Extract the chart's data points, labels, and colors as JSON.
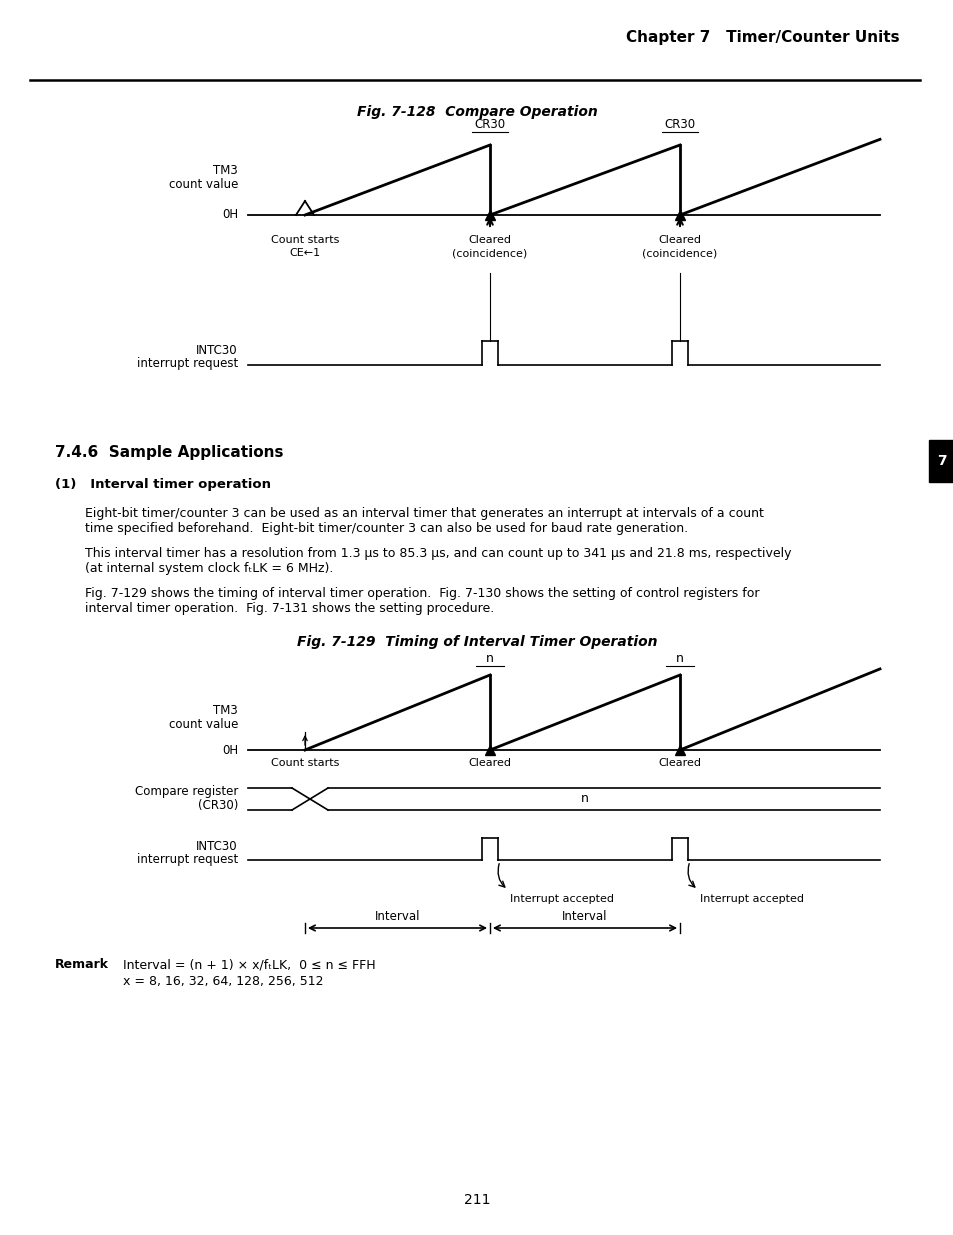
{
  "page_title": "Chapter 7   Timer/Counter Units",
  "fig1_title": "Fig. 7-128  Compare Operation",
  "fig2_title": "Fig. 7-129  Timing of Interval Timer Operation",
  "section_title": "7.4.6  Sample Applications",
  "subsection_title": "(1)   Interval timer operation",
  "para1a": "Eight-bit timer/counter 3 can be used as an interval timer that generates an interrupt at intervals of a count",
  "para1b": "time specified beforehand.  Eight-bit timer/counter 3 can also be used for baud rate generation.",
  "para2a": "This interval timer has a resolution from 1.3 μs to 85.3 μs, and can count up to 341 μs and 21.8 ms, respectively",
  "para2b": "(at internal system clock fₜLK = 6 MHz).",
  "para3a": "Fig. 7-129 shows the timing of interval timer operation.  Fig. 7-130 shows the setting of control registers for",
  "para3b": "interval timer operation.  Fig. 7-131 shows the setting procedure.",
  "remark_label": "Remark",
  "remark_text1": "Interval = (n + 1) × x/fₜLK,  0 ≤ n ≤ FFH",
  "remark_text2": "x = 8, 16, 32, 64, 128, 256, 512",
  "page_number": "211",
  "bg_color": "#ffffff"
}
